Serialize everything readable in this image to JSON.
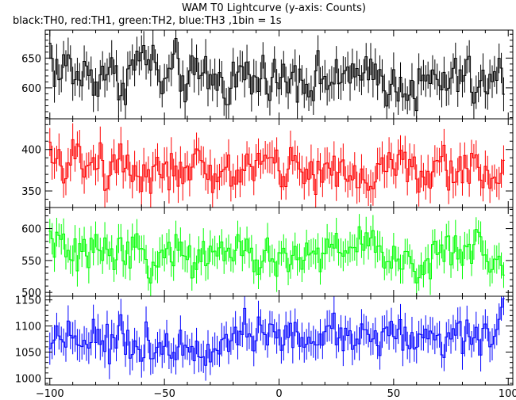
{
  "chart_data": {
    "type": "line",
    "title": "WAM T0 Lightcurve (y-axis: Counts)",
    "subtitle": "black:TH0, red:TH1, green:TH2, blue:TH3 ,1bin = 1s",
    "xlabel": "",
    "ylabel": "",
    "xlim": [
      -102,
      102
    ],
    "x_ticks": [
      -100,
      -50,
      0,
      50,
      100
    ],
    "x_step": 1,
    "x_start": -100,
    "x_end": 98,
    "grid": false,
    "panels": [
      {
        "name": "TH0",
        "color": "#000000",
        "ylim": [
          548,
          697
        ],
        "y_ticks": [
          600,
          650
        ],
        "mean": 612,
        "amplitude": 20,
        "err": 26,
        "anchors": [
          [
            -100,
            668
          ],
          [
            -98,
            635
          ],
          [
            -95,
            618
          ],
          [
            -93,
            646
          ],
          [
            -88,
            615
          ],
          [
            -83,
            628
          ],
          [
            -80,
            612
          ],
          [
            -75,
            636
          ],
          [
            -70,
            603
          ],
          [
            -64,
            634
          ],
          [
            -58,
            658
          ],
          [
            -50,
            602
          ],
          [
            -45,
            638
          ],
          [
            -40,
            606
          ],
          [
            -32,
            626
          ],
          [
            -24,
            602
          ],
          [
            -16,
            626
          ],
          [
            -10,
            608
          ],
          [
            -4,
            632
          ],
          [
            0,
            606
          ],
          [
            8,
            630
          ],
          [
            14,
            605
          ],
          [
            20,
            622
          ],
          [
            26,
            596
          ],
          [
            30,
            640
          ],
          [
            36,
            604
          ],
          [
            42,
            626
          ],
          [
            50,
            600
          ],
          [
            56,
            612
          ],
          [
            60,
            590
          ],
          [
            66,
            614
          ],
          [
            74,
            604
          ],
          [
            80,
            628
          ],
          [
            86,
            596
          ],
          [
            92,
            608
          ],
          [
            98,
            622
          ]
        ]
      },
      {
        "name": "TH1",
        "color": "#ff0000",
        "ylim": [
          330,
          437
        ],
        "y_ticks": [
          350,
          400
        ],
        "mean": 375,
        "amplitude": 13,
        "err": 18,
        "anchors": [
          [
            -100,
            390
          ],
          [
            -96,
            372
          ],
          [
            -90,
            396
          ],
          [
            -85,
            374
          ],
          [
            -80,
            392
          ],
          [
            -75,
            374
          ],
          [
            -68,
            390
          ],
          [
            -62,
            368
          ],
          [
            -55,
            380
          ],
          [
            -48,
            376
          ],
          [
            -42,
            362
          ],
          [
            -36,
            384
          ],
          [
            -30,
            362
          ],
          [
            -25,
            376
          ],
          [
            -18,
            370
          ],
          [
            -12,
            382
          ],
          [
            -6,
            388
          ],
          [
            0,
            372
          ],
          [
            6,
            384
          ],
          [
            12,
            370
          ],
          [
            18,
            378
          ],
          [
            24,
            366
          ],
          [
            30,
            378
          ],
          [
            36,
            362
          ],
          [
            42,
            376
          ],
          [
            48,
            380
          ],
          [
            54,
            388
          ],
          [
            60,
            362
          ],
          [
            66,
            372
          ],
          [
            72,
            380
          ],
          [
            78,
            372
          ],
          [
            84,
            386
          ],
          [
            90,
            370
          ],
          [
            98,
            372
          ]
        ]
      },
      {
        "name": "TH2",
        "color": "#00ff00",
        "ylim": [
          494,
          633
        ],
        "y_ticks": [
          500,
          550,
          600
        ],
        "mean": 556,
        "amplitude": 14,
        "err": 22,
        "anchors": [
          [
            -100,
            588
          ],
          [
            -96,
            578
          ],
          [
            -92,
            558
          ],
          [
            -86,
            556
          ],
          [
            -80,
            568
          ],
          [
            -74,
            578
          ],
          [
            -68,
            554
          ],
          [
            -62,
            578
          ],
          [
            -56,
            544
          ],
          [
            -50,
            552
          ],
          [
            -44,
            574
          ],
          [
            -38,
            548
          ],
          [
            -32,
            558
          ],
          [
            -26,
            568
          ],
          [
            -20,
            552
          ],
          [
            -14,
            564
          ],
          [
            -8,
            546
          ],
          [
            -2,
            554
          ],
          [
            4,
            550
          ],
          [
            10,
            562
          ],
          [
            16,
            552
          ],
          [
            22,
            576
          ],
          [
            28,
            560
          ],
          [
            34,
            576
          ],
          [
            40,
            584
          ],
          [
            46,
            564
          ],
          [
            52,
            544
          ],
          [
            56,
            552
          ],
          [
            60,
            518
          ],
          [
            64,
            550
          ],
          [
            70,
            570
          ],
          [
            76,
            552
          ],
          [
            82,
            574
          ],
          [
            88,
            566
          ],
          [
            94,
            544
          ],
          [
            98,
            556
          ]
        ]
      },
      {
        "name": "TH3",
        "color": "#0000ff",
        "ylim": [
          987,
          1157
        ],
        "y_ticks": [
          1000,
          1050,
          1100,
          1150
        ],
        "mean": 1075,
        "amplitude": 17,
        "err": 28,
        "anchors": [
          [
            -100,
            1062
          ],
          [
            -96,
            1090
          ],
          [
            -90,
            1082
          ],
          [
            -85,
            1070
          ],
          [
            -80,
            1094
          ],
          [
            -76,
            1058
          ],
          [
            -70,
            1084
          ],
          [
            -64,
            1054
          ],
          [
            -58,
            1072
          ],
          [
            -52,
            1058
          ],
          [
            -46,
            1072
          ],
          [
            -40,
            1052
          ],
          [
            -34,
            1068
          ],
          [
            -28,
            1060
          ],
          [
            -22,
            1082
          ],
          [
            -16,
            1092
          ],
          [
            -10,
            1078
          ],
          [
            -4,
            1086
          ],
          [
            0,
            1072
          ],
          [
            6,
            1086
          ],
          [
            12,
            1062
          ],
          [
            18,
            1080
          ],
          [
            24,
            1094
          ],
          [
            30,
            1070
          ],
          [
            36,
            1096
          ],
          [
            42,
            1072
          ],
          [
            48,
            1090
          ],
          [
            54,
            1082
          ],
          [
            60,
            1070
          ],
          [
            66,
            1084
          ],
          [
            72,
            1076
          ],
          [
            78,
            1090
          ],
          [
            84,
            1072
          ],
          [
            90,
            1082
          ],
          [
            94,
            1088
          ],
          [
            98,
            1140
          ]
        ]
      }
    ]
  }
}
